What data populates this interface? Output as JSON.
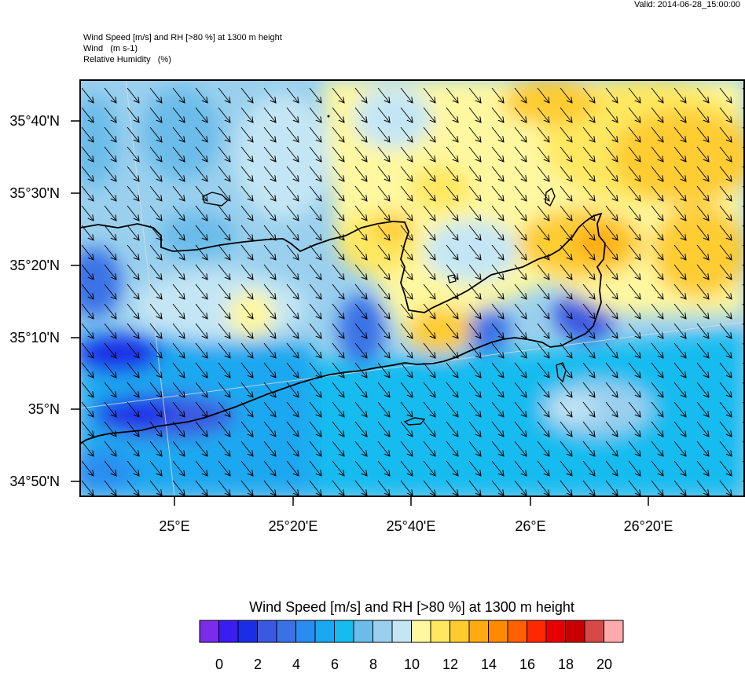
{
  "header": {
    "valid": "Valid: 2014-06-28_15:00:00",
    "line1": "Wind Speed [m/s] and RH [>80 %] at 1300 m height",
    "line2": "Wind   (m s-1)",
    "line3": "Relative Humidity   (%)"
  },
  "axes": {
    "lat_labels": [
      "35°40'N",
      "35°30'N",
      "35°20'N",
      "35°10'N",
      "35°N",
      "34°50'N"
    ],
    "lon_labels": [
      "25°E",
      "25°20'E",
      "25°40'E",
      "26°E",
      "26°20'E"
    ]
  },
  "colorbar": {
    "title": "Wind Speed [m/s] and RH [>80 %] at 1300 m height",
    "ticks": [
      "0",
      "2",
      "4",
      "6",
      "8",
      "10",
      "12",
      "14",
      "16",
      "18",
      "20"
    ],
    "colors": [
      "#7a2ce8",
      "#3a1ef0",
      "#1a2ee8",
      "#3a58e0",
      "#3a72e6",
      "#2a8cf0",
      "#1aa8f0",
      "#14bcf0",
      "#6cbcea",
      "#9ad0ee",
      "#c4e6f4",
      "#fff8a0",
      "#ffe860",
      "#ffcc30",
      "#ffaa10",
      "#ff8a00",
      "#ff6000",
      "#ff2800",
      "#e80000",
      "#c80000",
      "#d84848",
      "#ffaaaa"
    ]
  },
  "wind_direction": "north-westerly (arrows pointing south-east)",
  "colors": {
    "sea_deep": "#14bcf0",
    "sea_light": "#9ad0ee",
    "humid_yellow": "#fff8a0",
    "humid_orange": "#ffcc30"
  }
}
